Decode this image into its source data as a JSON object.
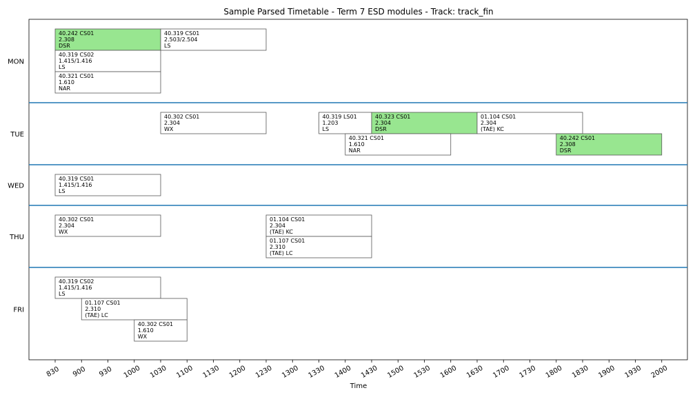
{
  "chart_data": {
    "type": "timetable",
    "title": "Sample Parsed Timetable - Term 7 ESD modules - Track: track_fin",
    "xlabel": "Time",
    "ylabel": "",
    "time_ticks": [
      "830",
      "900",
      "930",
      "1000",
      "1030",
      "1100",
      "1130",
      "1200",
      "1230",
      "1300",
      "1330",
      "1400",
      "1430",
      "1500",
      "1530",
      "1600",
      "1630",
      "1700",
      "1730",
      "1800",
      "1830",
      "1900",
      "1930",
      "2000"
    ],
    "days": [
      {
        "label": "MON",
        "lanes": 3
      },
      {
        "label": "TUE",
        "lanes": 2
      },
      {
        "label": "WED",
        "lanes": 1
      },
      {
        "label": "THU",
        "lanes": 2
      },
      {
        "label": "FRI",
        "lanes": 3
      }
    ],
    "sessions": [
      {
        "day": "MON",
        "lane": 0,
        "start": "830",
        "end": "1030",
        "module": "40.242 CS01",
        "room": "2.308",
        "instructor": "DSR",
        "highlight": true
      },
      {
        "day": "MON",
        "lane": 0,
        "start": "1030",
        "end": "1230",
        "module": "40.319 CS01",
        "room": "2.503/2.504",
        "instructor": "LS",
        "highlight": false
      },
      {
        "day": "MON",
        "lane": 1,
        "start": "830",
        "end": "1030",
        "module": "40.319 CS02",
        "room": "1.415/1.416",
        "instructor": "LS",
        "highlight": false
      },
      {
        "day": "MON",
        "lane": 2,
        "start": "830",
        "end": "1030",
        "module": "40.321 CS01",
        "room": "1.610",
        "instructor": "NAR",
        "highlight": false
      },
      {
        "day": "TUE",
        "lane": 0,
        "start": "1030",
        "end": "1230",
        "module": "40.302 CS01",
        "room": "2.304",
        "instructor": "WX",
        "highlight": false
      },
      {
        "day": "TUE",
        "lane": 0,
        "start": "1330",
        "end": "1430",
        "module": "40.319 LS01",
        "room": "1.203",
        "instructor": "LS",
        "highlight": false
      },
      {
        "day": "TUE",
        "lane": 0,
        "start": "1430",
        "end": "1630",
        "module": "40.323 CS01",
        "room": "2.304",
        "instructor": "DSR",
        "highlight": true
      },
      {
        "day": "TUE",
        "lane": 0,
        "start": "1630",
        "end": "1830",
        "module": "01.104 CS01",
        "room": "2.304",
        "instructor": "(TAE) KC",
        "highlight": false
      },
      {
        "day": "TUE",
        "lane": 1,
        "start": "1400",
        "end": "1600",
        "module": "40.321 CS01",
        "room": "1.610",
        "instructor": "NAR",
        "highlight": false
      },
      {
        "day": "TUE",
        "lane": 1,
        "start": "1800",
        "end": "2000",
        "module": "40.242 CS01",
        "room": "2.308",
        "instructor": "DSR",
        "highlight": true
      },
      {
        "day": "WED",
        "lane": 0,
        "start": "830",
        "end": "1030",
        "module": "40.319 CS01",
        "room": "1.415/1.416",
        "instructor": "LS",
        "highlight": false
      },
      {
        "day": "THU",
        "lane": 0,
        "start": "830",
        "end": "1030",
        "module": "40.302 CS01",
        "room": "2.304",
        "instructor": "WX",
        "highlight": false
      },
      {
        "day": "THU",
        "lane": 0,
        "start": "1230",
        "end": "1430",
        "module": "01.104 CS01",
        "room": "2.304",
        "instructor": "(TAE) KC",
        "highlight": false
      },
      {
        "day": "THU",
        "lane": 1,
        "start": "1230",
        "end": "1430",
        "module": "01.107 CS01",
        "room": "2.310",
        "instructor": "(TAE) LC",
        "highlight": false
      },
      {
        "day": "FRI",
        "lane": 0,
        "start": "830",
        "end": "1030",
        "module": "40.319 CS02",
        "room": "1.415/1.416",
        "instructor": "LS",
        "highlight": false
      },
      {
        "day": "FRI",
        "lane": 1,
        "start": "900",
        "end": "1100",
        "module": "01.107 CS01",
        "room": "2.310",
        "instructor": "(TAE) LC",
        "highlight": false
      },
      {
        "day": "FRI",
        "lane": 2,
        "start": "1000",
        "end": "1100",
        "module": "40.302 CS01",
        "room": "1.610",
        "instructor": "WX",
        "highlight": false
      }
    ],
    "colors": {
      "highlight_fill": "#98e690",
      "normal_fill": "#ffffff",
      "block_border": "#555555",
      "separator": "#1f77b4"
    },
    "grid": false
  }
}
